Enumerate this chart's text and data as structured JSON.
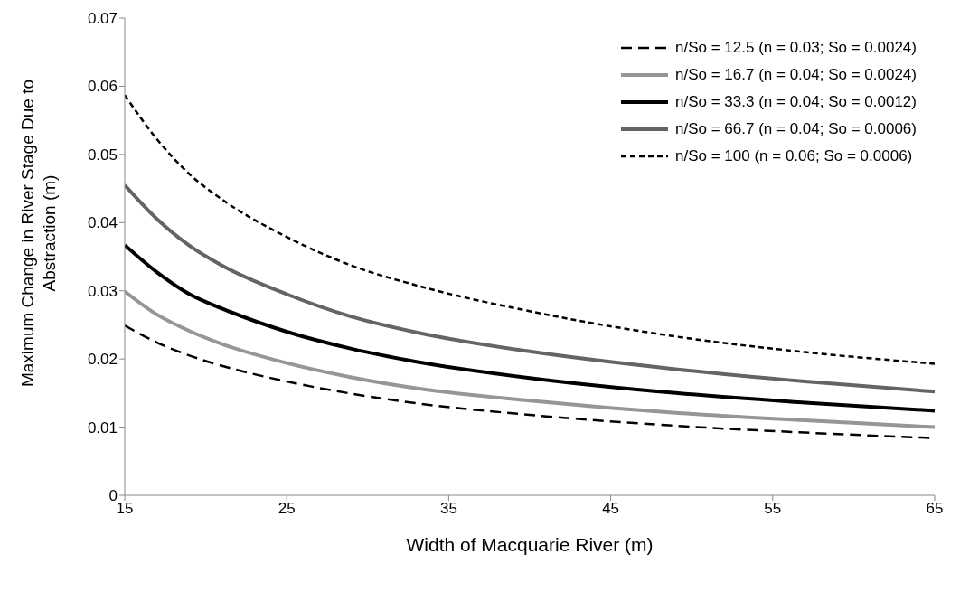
{
  "chart_data": {
    "type": "line",
    "xlabel": "Width of Macquarie River (m)",
    "ylabel": "Maximum Change in River Stage Due to Abstraction (m)",
    "x": [
      15,
      17,
      19,
      21,
      25,
      29,
      33,
      40,
      49,
      57,
      65
    ],
    "series": [
      {
        "name": "n/So = 12.5 (n = 0.03; So = 0.0024)",
        "color": "#000000",
        "line_style": "dashed",
        "values": [
          0.0249,
          0.0224,
          0.0205,
          0.019,
          0.0167,
          0.0149,
          0.0135,
          0.0118,
          0.0102,
          0.0092,
          0.0084
        ]
      },
      {
        "name": "n/So = 16.7 (n = 0.04; So = 0.0024)",
        "color": "#969696",
        "line_style": "solid",
        "values": [
          0.0299,
          0.0265,
          0.0241,
          0.0222,
          0.0194,
          0.0173,
          0.0157,
          0.0139,
          0.0121,
          0.011,
          0.01
        ]
      },
      {
        "name": "n/So = 33.3 (n = 0.04; So = 0.0012)",
        "color": "#000000",
        "line_style": "solid",
        "values": [
          0.0367,
          0.0327,
          0.0295,
          0.0274,
          0.024,
          0.0215,
          0.0196,
          0.0172,
          0.015,
          0.0136,
          0.0124
        ]
      },
      {
        "name": "n/So = 66.7 (n = 0.04; So = 0.0006)",
        "color": "#646464",
        "line_style": "solid",
        "values": [
          0.0455,
          0.0405,
          0.0366,
          0.0337,
          0.0295,
          0.0262,
          0.0239,
          0.0211,
          0.0185,
          0.0167,
          0.0152
        ]
      },
      {
        "name": "n/So = 100 (n = 0.06; So = 0.0006)",
        "color": "#000000",
        "line_style": "dotted",
        "values": [
          0.0587,
          0.0522,
          0.0471,
          0.0434,
          0.0379,
          0.0337,
          0.0308,
          0.027,
          0.0233,
          0.021,
          0.0193
        ]
      }
    ],
    "xlim": [
      15,
      65
    ],
    "xticks": [
      15,
      25,
      35,
      45,
      55,
      65
    ],
    "ylim": [
      0,
      0.07
    ],
    "yticks": [
      0,
      0.01,
      0.02,
      0.03,
      0.04,
      0.05,
      0.06,
      0.07
    ],
    "grid": false,
    "legend": "top right",
    "marker": "none"
  }
}
